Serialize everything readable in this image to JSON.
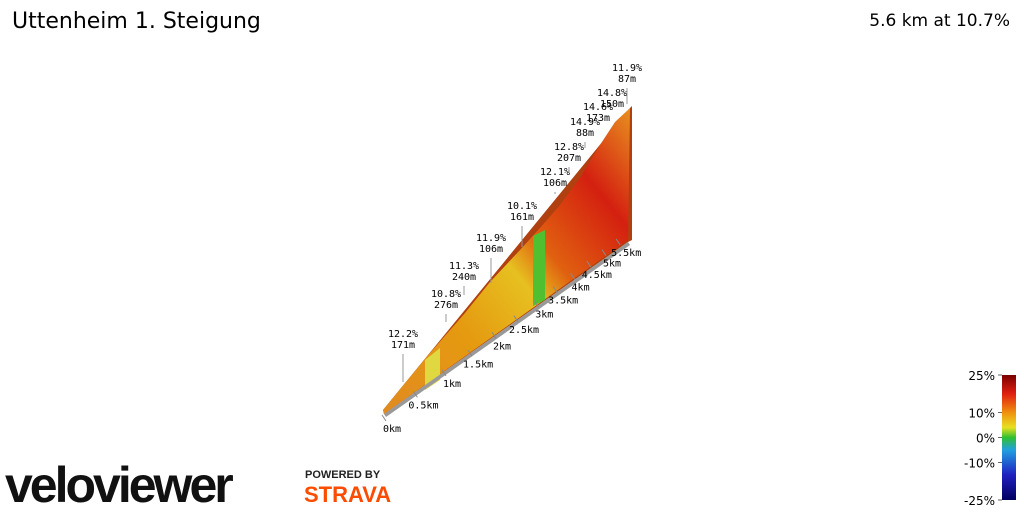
{
  "chart_data": {
    "type": "elevation-profile",
    "title": "Uttenheim 1. Steigung",
    "subtitle": "5.6 km at 10.7%",
    "xticks": [
      {
        "value": 0,
        "label": "0km"
      },
      {
        "value": 0.5,
        "label": "0.5km"
      },
      {
        "value": 1,
        "label": "1km"
      },
      {
        "value": 1.5,
        "label": "1.5km"
      },
      {
        "value": 2,
        "label": "2km"
      },
      {
        "value": 2.5,
        "label": "2.5km"
      },
      {
        "value": 3,
        "label": "3km"
      },
      {
        "value": 3.5,
        "label": "3.5km"
      },
      {
        "value": 4,
        "label": "4km"
      },
      {
        "value": 4.5,
        "label": "4.5km"
      },
      {
        "value": 5,
        "label": "5km"
      },
      {
        "value": 5.5,
        "label": "5.5km"
      }
    ],
    "annotations": [
      {
        "grade": "12.2%",
        "length": "171m"
      },
      {
        "grade": "10.8%",
        "length": "276m"
      },
      {
        "grade": "11.3%",
        "length": "240m"
      },
      {
        "grade": "11.9%",
        "length": "106m"
      },
      {
        "grade": "10.1%",
        "length": "161m"
      },
      {
        "grade": "12.1%",
        "length": "106m"
      },
      {
        "grade": "12.8%",
        "length": "207m"
      },
      {
        "grade": "14.9%",
        "length": "88m"
      },
      {
        "grade": "14.6%",
        "length": "173m"
      },
      {
        "grade": "14.8%",
        "length": "150m"
      },
      {
        "grade": "11.9%",
        "length": "87m"
      }
    ],
    "colorbar_ticks": [
      {
        "value": 25,
        "label": "25%"
      },
      {
        "value": 10,
        "label": "10%"
      },
      {
        "value": 0,
        "label": "0%"
      },
      {
        "value": -10,
        "label": "-10%"
      },
      {
        "value": -25,
        "label": "-25%"
      }
    ]
  },
  "branding": {
    "logo": "veloviewer",
    "powered_by": "POWERED BY",
    "strava": "STRAVA"
  }
}
